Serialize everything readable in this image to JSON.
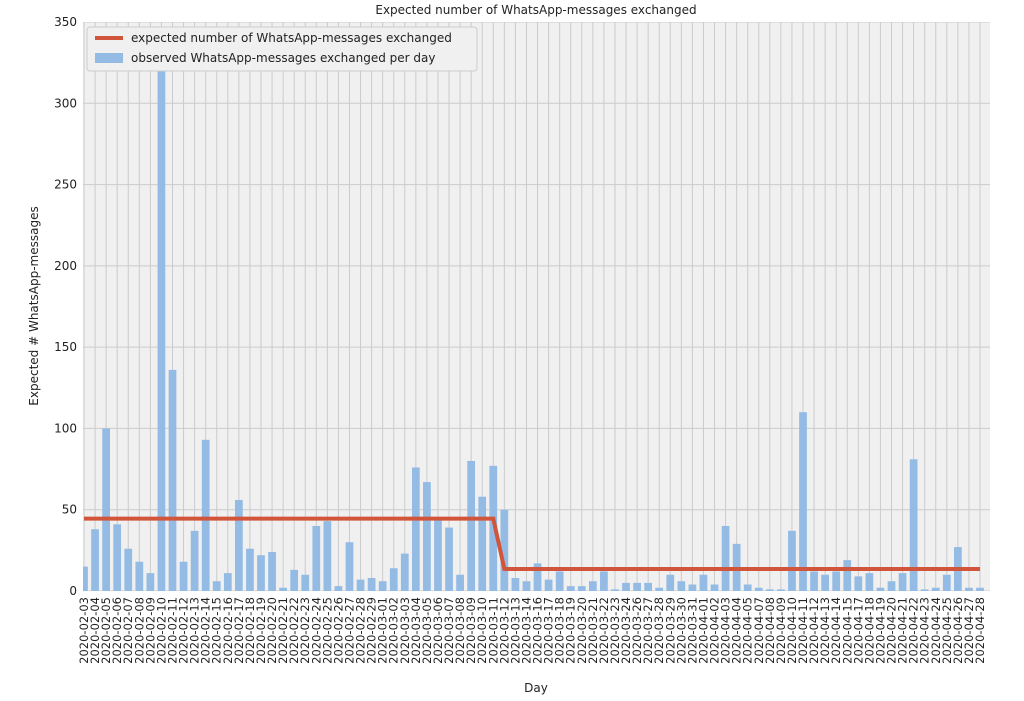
{
  "chart_data": {
    "type": "bar",
    "title": "Expected number of WhatsApp-messages exchanged",
    "xlabel": "Day",
    "ylabel": "Expected # WhatsApp-messages",
    "categories": [
      "2020-02-03",
      "2020-02-04",
      "2020-02-05",
      "2020-02-06",
      "2020-02-07",
      "2020-02-08",
      "2020-02-09",
      "2020-02-10",
      "2020-02-11",
      "2020-02-12",
      "2020-02-13",
      "2020-02-14",
      "2020-02-15",
      "2020-02-16",
      "2020-02-17",
      "2020-02-18",
      "2020-02-19",
      "2020-02-20",
      "2020-02-21",
      "2020-02-22",
      "2020-02-23",
      "2020-02-24",
      "2020-02-25",
      "2020-02-26",
      "2020-02-27",
      "2020-02-28",
      "2020-02-29",
      "2020-03-01",
      "2020-03-02",
      "2020-03-03",
      "2020-03-04",
      "2020-03-05",
      "2020-03-06",
      "2020-03-07",
      "2020-03-08",
      "2020-03-09",
      "2020-03-10",
      "2020-03-11",
      "2020-03-12",
      "2020-03-13",
      "2020-03-14",
      "2020-03-16",
      "2020-03-17",
      "2020-03-18",
      "2020-03-19",
      "2020-03-20",
      "2020-03-21",
      "2020-03-22",
      "2020-03-23",
      "2020-03-24",
      "2020-03-26",
      "2020-03-27",
      "2020-03-28",
      "2020-03-29",
      "2020-03-30",
      "2020-03-31",
      "2020-04-01",
      "2020-04-02",
      "2020-04-03",
      "2020-04-04",
      "2020-04-05",
      "2020-04-07",
      "2020-04-08",
      "2020-04-09",
      "2020-04-10",
      "2020-04-11",
      "2020-04-12",
      "2020-04-13",
      "2020-04-14",
      "2020-04-15",
      "2020-04-17",
      "2020-04-18",
      "2020-04-19",
      "2020-04-20",
      "2020-04-21",
      "2020-04-22",
      "2020-04-23",
      "2020-04-24",
      "2020-04-25",
      "2020-04-26",
      "2020-04-27",
      "2020-04-28"
    ],
    "series": [
      {
        "name": "expected number of WhatsApp-messages exchanged",
        "type": "line",
        "color": "#d1553b",
        "values": [
          44.5,
          44.5,
          44.5,
          44.5,
          44.5,
          44.5,
          44.5,
          44.5,
          44.5,
          44.5,
          44.5,
          44.5,
          44.5,
          44.5,
          44.5,
          44.5,
          44.5,
          44.5,
          44.5,
          44.5,
          44.5,
          44.5,
          44.5,
          44.5,
          44.5,
          44.5,
          44.5,
          44.5,
          44.5,
          44.5,
          44.5,
          44.5,
          44.5,
          44.5,
          44.5,
          44.5,
          44.5,
          44.5,
          13.5,
          13.5,
          13.5,
          13.5,
          13.5,
          13.5,
          13.5,
          13.5,
          13.5,
          13.5,
          13.5,
          13.5,
          13.5,
          13.5,
          13.5,
          13.5,
          13.5,
          13.5,
          13.5,
          13.5,
          13.5,
          13.5,
          13.5,
          13.5,
          13.5,
          13.5,
          13.5,
          13.5,
          13.5,
          13.5,
          13.5,
          13.5,
          13.5,
          13.5,
          13.5,
          13.5,
          13.5,
          13.5,
          13.5,
          13.5,
          13.5,
          13.5,
          13.5,
          13.5
        ]
      },
      {
        "name": "observed WhatsApp-messages exchanged per day",
        "type": "bar",
        "color": "#94bbe3",
        "values": [
          15,
          38,
          100,
          41,
          26,
          18,
          11,
          345,
          136,
          18,
          37,
          93,
          6,
          11,
          56,
          26,
          22,
          24,
          2,
          13,
          10,
          40,
          43,
          3,
          30,
          7,
          8,
          6,
          14,
          23,
          76,
          67,
          45,
          39,
          10,
          80,
          58,
          77,
          50,
          8,
          6,
          17,
          7,
          12,
          3,
          3,
          6,
          12,
          1,
          5,
          5,
          5,
          2,
          10,
          6,
          4,
          10,
          4,
          40,
          29,
          4,
          2,
          1,
          1,
          37,
          110,
          12,
          10,
          12,
          19,
          9,
          11,
          2,
          6,
          11,
          81,
          1,
          2,
          10,
          27,
          2,
          2
        ]
      }
    ],
    "ylim": [
      0,
      350
    ],
    "yticks": [
      0,
      50,
      100,
      150,
      200,
      250,
      300,
      350
    ],
    "grid": true,
    "legend": "upper left"
  }
}
